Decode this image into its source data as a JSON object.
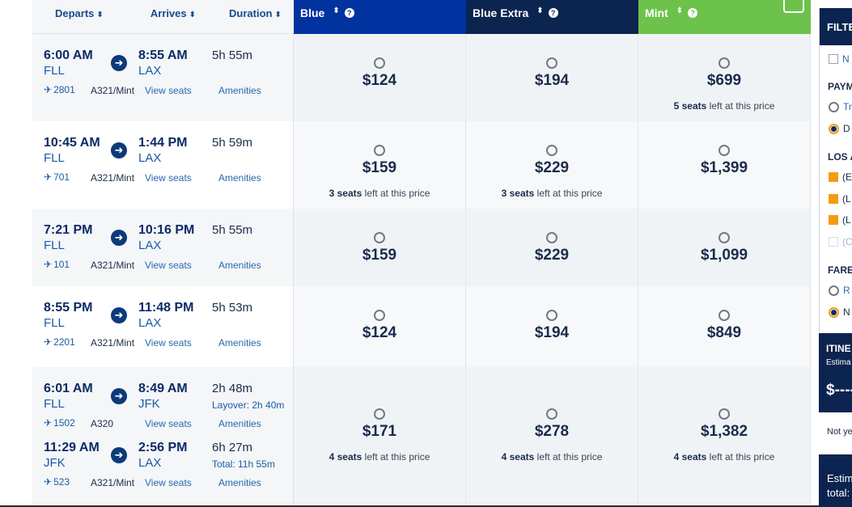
{
  "header": {
    "departs": "Departs",
    "arrives": "Arrives",
    "duration": "Duration",
    "sort_arrow": "⬍",
    "fares": [
      {
        "name": "Blue",
        "color": "#0033a0"
      },
      {
        "name": "Blue Extra",
        "color": "#0c2450"
      },
      {
        "name": "Mint",
        "color": "#6cc24a"
      }
    ]
  },
  "link_labels": {
    "view_seats": "View seats",
    "amenities": "Amenities"
  },
  "flights": [
    {
      "legs": [
        {
          "depart_time": "6:00 AM",
          "depart_airport": "FLL",
          "arrive_time": "8:55 AM",
          "arrive_airport": "LAX",
          "duration": "5h 55m",
          "flight_no": "2801",
          "aircraft": "A321/Mint"
        }
      ],
      "fares": [
        {
          "price": "$124",
          "seats_bold": "",
          "seats_text": ""
        },
        {
          "price": "$194",
          "seats_bold": "",
          "seats_text": ""
        },
        {
          "price": "$699",
          "seats_bold": "5 seats",
          "seats_text": " left at this price"
        }
      ]
    },
    {
      "legs": [
        {
          "depart_time": "10:45 AM",
          "depart_airport": "FLL",
          "arrive_time": "1:44 PM",
          "arrive_airport": "LAX",
          "duration": "5h 59m",
          "flight_no": "701",
          "aircraft": "A321/Mint"
        }
      ],
      "fares": [
        {
          "price": "$159",
          "seats_bold": "3 seats",
          "seats_text": " left at this price"
        },
        {
          "price": "$229",
          "seats_bold": "3 seats",
          "seats_text": " left at this price"
        },
        {
          "price": "$1,399",
          "seats_bold": "",
          "seats_text": ""
        }
      ]
    },
    {
      "legs": [
        {
          "depart_time": "7:21 PM",
          "depart_airport": "FLL",
          "arrive_time": "10:16 PM",
          "arrive_airport": "LAX",
          "duration": "5h 55m",
          "flight_no": "101",
          "aircraft": "A321/Mint"
        }
      ],
      "fares": [
        {
          "price": "$159",
          "seats_bold": "",
          "seats_text": ""
        },
        {
          "price": "$229",
          "seats_bold": "",
          "seats_text": ""
        },
        {
          "price": "$1,099",
          "seats_bold": "",
          "seats_text": ""
        }
      ]
    },
    {
      "legs": [
        {
          "depart_time": "8:55 PM",
          "depart_airport": "FLL",
          "arrive_time": "11:48 PM",
          "arrive_airport": "LAX",
          "duration": "5h 53m",
          "flight_no": "2201",
          "aircraft": "A321/Mint"
        }
      ],
      "fares": [
        {
          "price": "$124",
          "seats_bold": "",
          "seats_text": ""
        },
        {
          "price": "$194",
          "seats_bold": "",
          "seats_text": ""
        },
        {
          "price": "$849",
          "seats_bold": "",
          "seats_text": ""
        }
      ]
    },
    {
      "legs": [
        {
          "depart_time": "6:01 AM",
          "depart_airport": "FLL",
          "arrive_time": "8:49 AM",
          "arrive_airport": "JFK",
          "duration": "2h 48m",
          "extra": "Layover: 2h 40m",
          "flight_no": "1502",
          "aircraft": "A320"
        },
        {
          "depart_time": "11:29 AM",
          "depart_airport": "JFK",
          "arrive_time": "2:56 PM",
          "arrive_airport": "LAX",
          "duration": "6h 27m",
          "extra": "Total: 11h 55m",
          "flight_no": "523",
          "aircraft": "A321/Mint"
        }
      ],
      "fares": [
        {
          "price": "$171",
          "seats_bold": "4 seats",
          "seats_text": " left at this price"
        },
        {
          "price": "$278",
          "seats_bold": "4 seats",
          "seats_text": " left at this price"
        },
        {
          "price": "$1,382",
          "seats_bold": "4 seats",
          "seats_text": " left at this price"
        }
      ]
    }
  ],
  "filters": {
    "title": "FILTE",
    "nonstop": "N",
    "payment_heading": "PAYM",
    "payment_options": [
      {
        "label": "Tr",
        "selected": false
      },
      {
        "label": "D",
        "selected": true
      }
    ],
    "los_heading": "LOS A",
    "airport_options": [
      {
        "label": "(E",
        "checked": true
      },
      {
        "label": "(L",
        "checked": true
      },
      {
        "label": "(L",
        "checked": true
      },
      {
        "label": "(C",
        "checked": false
      }
    ],
    "fare_heading": "FARE",
    "fare_options": [
      {
        "label": "R",
        "selected": false
      },
      {
        "label": "N",
        "selected": true
      }
    ]
  },
  "itinerary": {
    "title": "ITINE",
    "subtitle": "Estima",
    "price": "$----",
    "not_yet": "Not ye"
  },
  "estimate": {
    "line1": "Estim",
    "line2": "total:"
  }
}
